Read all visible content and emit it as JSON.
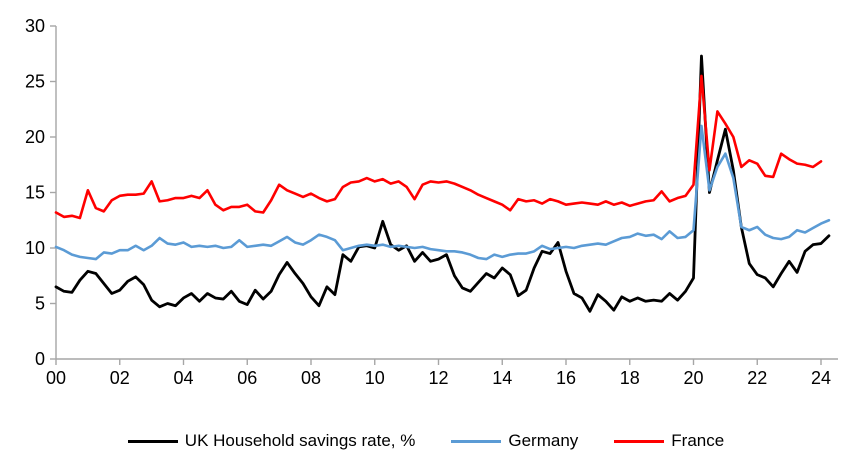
{
  "chart_data": {
    "type": "line",
    "title": "",
    "xlabel": "",
    "ylabel": "",
    "frequency": "quarterly",
    "x_start": "2000Q1",
    "x_tick_labels": [
      "00",
      "02",
      "04",
      "06",
      "08",
      "10",
      "12",
      "14",
      "16",
      "18",
      "20",
      "22",
      "24"
    ],
    "y_tick_labels": [
      "0",
      "5",
      "10",
      "15",
      "20",
      "25",
      "30"
    ],
    "ylim": [
      0,
      30
    ],
    "grid": false,
    "legend_position": "bottom",
    "axis_color": "#A6A6A6",
    "series": [
      {
        "name": "UK Household savings rate, %",
        "color": "#000000",
        "values": [
          6.5,
          6.1,
          6.0,
          7.1,
          7.9,
          7.7,
          6.8,
          5.9,
          6.2,
          7.0,
          7.4,
          6.7,
          5.3,
          4.7,
          5.0,
          4.8,
          5.5,
          5.9,
          5.2,
          5.9,
          5.5,
          5.4,
          6.1,
          5.2,
          4.9,
          6.2,
          5.4,
          6.1,
          7.6,
          8.7,
          7.7,
          6.8,
          5.6,
          4.8,
          6.5,
          5.8,
          9.4,
          8.8,
          10.1,
          10.2,
          10.0,
          12.4,
          10.3,
          9.8,
          10.2,
          8.8,
          9.6,
          8.8,
          9.0,
          9.4,
          7.5,
          6.4,
          6.1,
          6.9,
          7.7,
          7.3,
          8.2,
          7.6,
          5.7,
          6.2,
          8.2,
          9.7,
          9.5,
          10.5,
          7.9,
          5.9,
          5.5,
          4.3,
          5.8,
          5.2,
          4.4,
          5.6,
          5.2,
          5.5,
          5.2,
          5.3,
          5.2,
          5.9,
          5.3,
          6.1,
          7.3,
          27.3,
          15.0,
          17.9,
          20.7,
          17.0,
          11.9,
          8.6,
          7.6,
          7.3,
          6.5,
          7.7,
          8.8,
          7.8,
          9.7,
          10.3,
          10.4,
          11.1
        ]
      },
      {
        "name": "Germany",
        "color": "#5B9BD5",
        "values": [
          10.1,
          9.8,
          9.4,
          9.2,
          9.1,
          9.0,
          9.6,
          9.5,
          9.8,
          9.8,
          10.2,
          9.8,
          10.2,
          10.9,
          10.4,
          10.3,
          10.5,
          10.1,
          10.2,
          10.1,
          10.2,
          10.0,
          10.1,
          10.7,
          10.1,
          10.2,
          10.3,
          10.2,
          10.6,
          11.0,
          10.5,
          10.3,
          10.7,
          11.2,
          11.0,
          10.7,
          9.8,
          10.0,
          10.2,
          10.3,
          10.2,
          10.3,
          10.1,
          10.2,
          10.1,
          10.0,
          10.1,
          9.9,
          9.8,
          9.7,
          9.7,
          9.6,
          9.4,
          9.1,
          9.0,
          9.4,
          9.2,
          9.4,
          9.5,
          9.5,
          9.7,
          10.2,
          9.9,
          10.0,
          10.1,
          10.0,
          10.2,
          10.3,
          10.4,
          10.3,
          10.6,
          10.9,
          11.0,
          11.3,
          11.1,
          11.2,
          10.8,
          11.5,
          10.9,
          11.0,
          11.6,
          21.0,
          15.2,
          17.3,
          18.5,
          16.3,
          11.9,
          11.6,
          11.9,
          11.2,
          10.9,
          10.8,
          11.0,
          11.6,
          11.4,
          11.8,
          12.2,
          12.5
        ]
      },
      {
        "name": "France",
        "color": "#FF0000",
        "values": [
          13.2,
          12.8,
          12.9,
          12.7,
          15.2,
          13.6,
          13.3,
          14.3,
          14.7,
          14.8,
          14.8,
          14.9,
          16.0,
          14.2,
          14.3,
          14.5,
          14.5,
          14.7,
          14.5,
          15.2,
          13.9,
          13.4,
          13.7,
          13.7,
          13.9,
          13.3,
          13.2,
          14.3,
          15.7,
          15.2,
          14.9,
          14.6,
          14.9,
          14.5,
          14.2,
          14.4,
          15.5,
          15.9,
          16.0,
          16.3,
          16.0,
          16.2,
          15.8,
          16.0,
          15.5,
          14.4,
          15.7,
          16.0,
          15.9,
          16.0,
          15.8,
          15.5,
          15.2,
          14.8,
          14.5,
          14.2,
          13.9,
          13.4,
          14.4,
          14.2,
          14.3,
          14.0,
          14.4,
          14.2,
          13.9,
          14.0,
          14.1,
          14.0,
          13.9,
          14.2,
          13.9,
          14.1,
          13.8,
          14.0,
          14.2,
          14.3,
          15.1,
          14.2,
          14.5,
          14.7,
          15.7,
          25.5,
          17.0,
          22.3,
          21.2,
          20.0,
          17.3,
          17.9,
          17.6,
          16.5,
          16.4,
          18.5,
          18.0,
          17.6,
          17.5,
          17.3,
          17.8
        ]
      }
    ]
  }
}
